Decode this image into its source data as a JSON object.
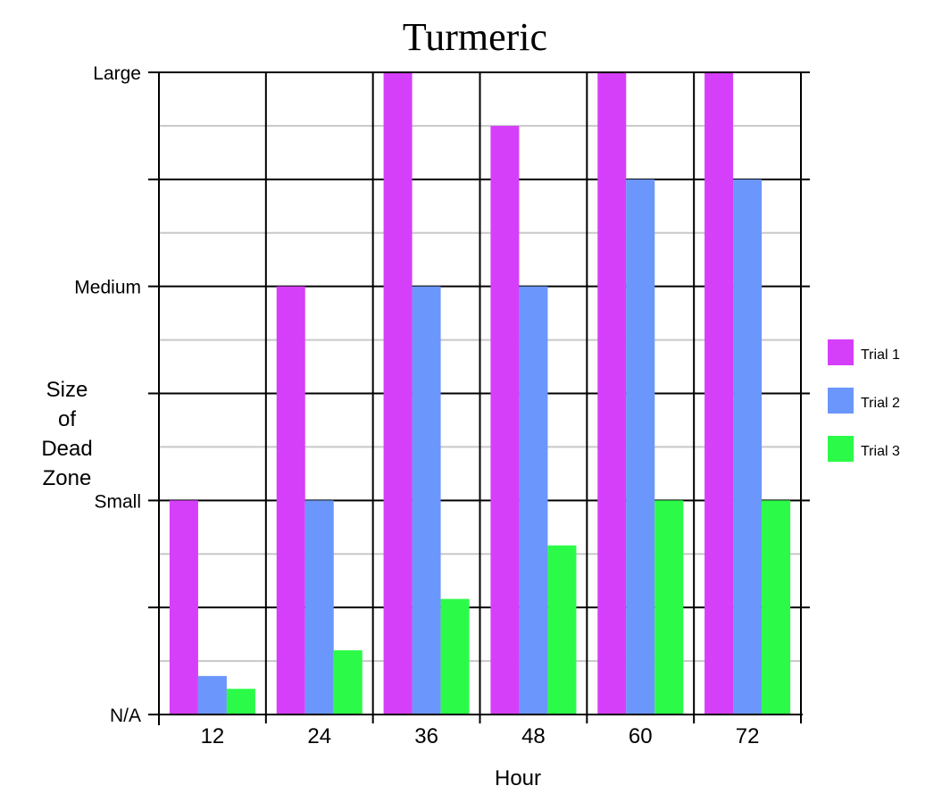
{
  "chart_data": {
    "type": "bar",
    "title": "Turmeric",
    "xlabel": "Hour",
    "ylabel_lines": [
      "Size",
      "of",
      "Dead",
      "Zone"
    ],
    "categories": [
      "12",
      "24",
      "36",
      "48",
      "60",
      "72"
    ],
    "y_ticks": [
      {
        "value": 0,
        "label": "N/A"
      },
      {
        "value": 1,
        "label": "Small"
      },
      {
        "value": 2,
        "label": "Medium"
      },
      {
        "value": 3,
        "label": "Large"
      }
    ],
    "ylim": [
      0,
      3
    ],
    "grid": true,
    "legend_position": "right",
    "series": [
      {
        "name": "Trial 1",
        "color": "#d63ffa",
        "values": [
          1.0,
          2.0,
          3.0,
          2.75,
          3.0,
          3.0
        ]
      },
      {
        "name": "Trial 2",
        "color": "#6b96fb",
        "values": [
          0.18,
          1.0,
          2.0,
          2.0,
          2.5,
          2.5
        ]
      },
      {
        "name": "Trial 3",
        "color": "#2bfb48",
        "values": [
          0.12,
          0.3,
          0.54,
          0.79,
          1.0,
          1.0
        ]
      }
    ]
  }
}
